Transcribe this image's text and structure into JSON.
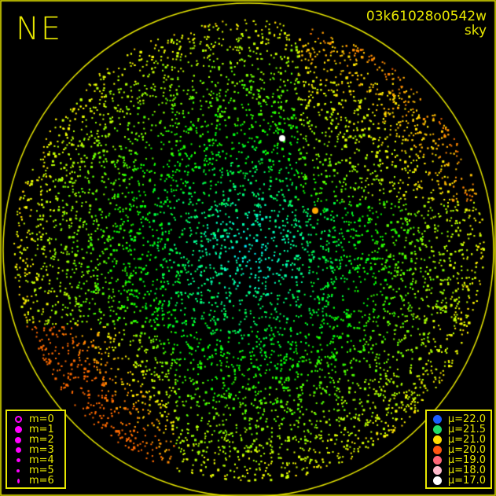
{
  "orientation_label": "NE",
  "header": {
    "frame_id": "03k61028o0542w",
    "mode": "sky"
  },
  "colors": {
    "frame": "#e8e800",
    "background": "#000000"
  },
  "magnitude_legend": {
    "symbol_color": "#ff00ff",
    "items": [
      {
        "label": "m=0",
        "symbol": "open-circle"
      },
      {
        "label": "m=1",
        "symbol": "filled-circle"
      },
      {
        "label": "m=2",
        "symbol": "filled-circle"
      },
      {
        "label": "m=3",
        "symbol": "filled-circle"
      },
      {
        "label": "m=4",
        "symbol": "filled-circle"
      },
      {
        "label": "m=5",
        "symbol": "filled-circle"
      },
      {
        "label": "m=6",
        "symbol": "filled-circle"
      }
    ]
  },
  "sky_brightness_legend": {
    "items": [
      {
        "label": "μ=22.0",
        "color": "#1a5cff"
      },
      {
        "label": "μ=21.5",
        "color": "#22dd66"
      },
      {
        "label": "μ=21.0",
        "color": "#ffdd00"
      },
      {
        "label": "μ=20.0",
        "color": "#ff5511"
      },
      {
        "label": "μ=19.0",
        "color": "#ff6677"
      },
      {
        "label": "μ=18.0",
        "color": "#ffbbcc"
      },
      {
        "label": "μ=17.0",
        "color": "#ffffff"
      }
    ]
  }
}
